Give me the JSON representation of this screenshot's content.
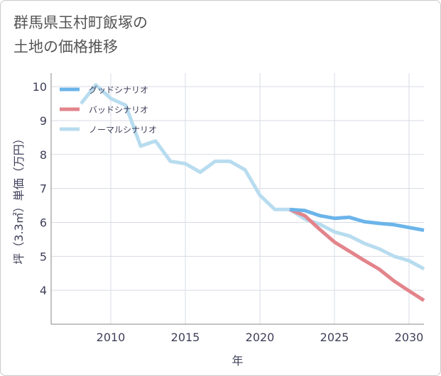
{
  "title_line1": "群馬県玉村町飯塚の",
  "title_line2": "土地の価格推移",
  "chart_data": {
    "type": "line",
    "xlabel": "年",
    "ylabel": "坪（3.3㎡）単価（万円）",
    "xlim": [
      2006,
      2031
    ],
    "ylim": [
      3,
      10.4
    ],
    "xticks": [
      2010,
      2015,
      2020,
      2025,
      2030
    ],
    "yticks": [
      4,
      5,
      6,
      7,
      8,
      9,
      10
    ],
    "grid": true,
    "legend_position": "top-left",
    "series": [
      {
        "name": "グッドシナリオ",
        "color": "#6bb4ea",
        "x": [
          2022,
          2023,
          2024,
          2025,
          2026,
          2027,
          2028,
          2029,
          2030,
          2031
        ],
        "y": [
          6.38,
          6.35,
          6.2,
          6.12,
          6.15,
          6.02,
          5.97,
          5.93,
          5.85,
          5.77
        ]
      },
      {
        "name": "バッドシナリオ",
        "color": "#e3848b",
        "x": [
          2022,
          2023,
          2024,
          2025,
          2026,
          2027,
          2028,
          2029,
          2030,
          2031
        ],
        "y": [
          6.38,
          6.2,
          5.8,
          5.42,
          5.15,
          4.88,
          4.62,
          4.27,
          3.98,
          3.7
        ]
      },
      {
        "name": "ノーマルシナリオ",
        "color": "#b8dcef",
        "x": [
          2008,
          2009,
          2010,
          2011,
          2012,
          2013,
          2014,
          2015,
          2016,
          2017,
          2018,
          2019,
          2020,
          2021,
          2022,
          2023,
          2024,
          2025,
          2026,
          2027,
          2028,
          2029,
          2030,
          2031
        ],
        "y": [
          9.5,
          10.05,
          9.65,
          9.45,
          8.25,
          8.4,
          7.8,
          7.73,
          7.48,
          7.8,
          7.8,
          7.55,
          6.8,
          6.38,
          6.38,
          6.1,
          5.95,
          5.72,
          5.6,
          5.38,
          5.22,
          5.0,
          4.87,
          4.63
        ]
      }
    ]
  }
}
